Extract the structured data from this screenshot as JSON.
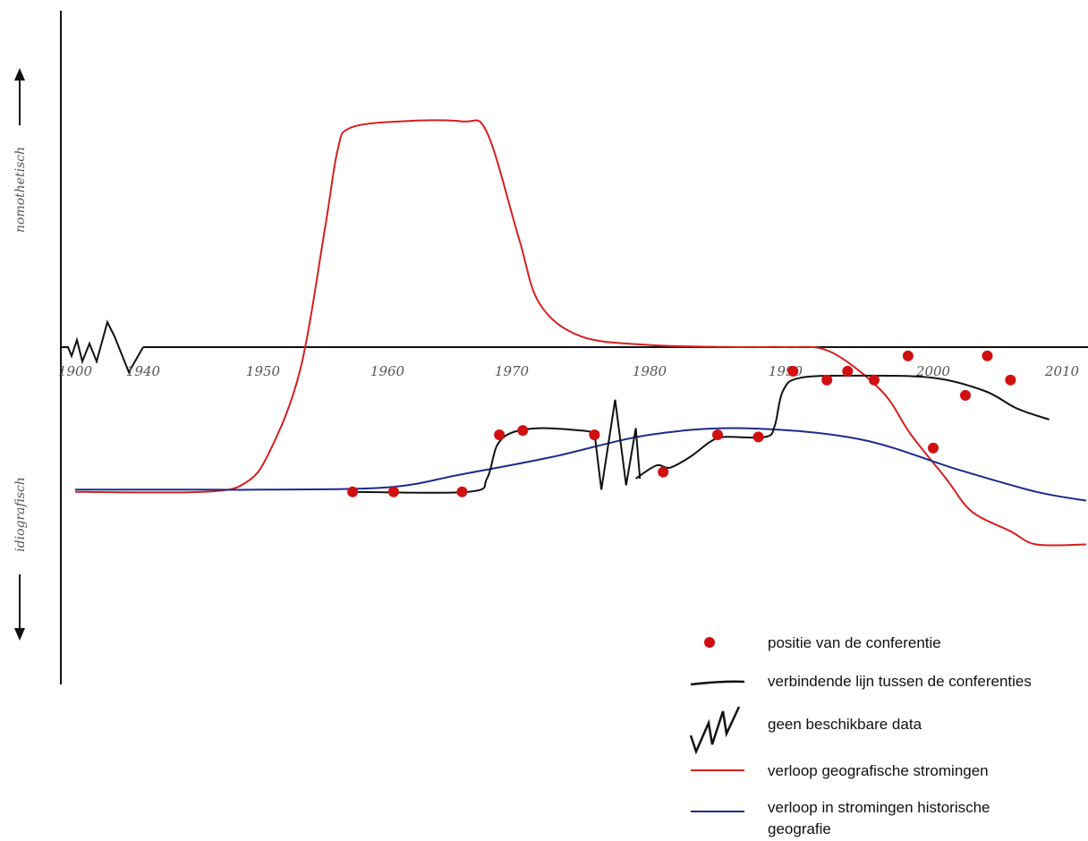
{
  "chart_data": {
    "type": "line",
    "y_axis": {
      "top_label": "nomothetisch",
      "bottom_label": "idiografisch"
    },
    "x_ticks": [
      {
        "label": "1900",
        "year": 1900
      },
      {
        "label": "1940",
        "year": 1940
      },
      {
        "label": "1950",
        "year": 1950
      },
      {
        "label": "1960",
        "year": 1960
      },
      {
        "label": "1970",
        "year": 1970
      },
      {
        "label": "1980",
        "year": 1980
      },
      {
        "label": "1990",
        "year": 1990
      },
      {
        "label": "2000",
        "year": 2000
      },
      {
        "label": "2010",
        "year": 2010
      }
    ],
    "series": [
      {
        "key": "geo",
        "name": "verloop geografische stromingen",
        "color": "#d42020",
        "points": [
          [
            1900,
            -0.66
          ],
          [
            1945,
            -0.66
          ],
          [
            1948.5,
            -0.62
          ],
          [
            1950.5,
            -0.48
          ],
          [
            1953,
            -0.1
          ],
          [
            1955,
            0.55
          ],
          [
            1956,
            0.9
          ],
          [
            1957,
            1.0
          ],
          [
            1961,
            1.03
          ],
          [
            1966,
            1.03
          ],
          [
            1968,
            0.98
          ],
          [
            1970.5,
            0.5
          ],
          [
            1972,
            0.2
          ],
          [
            1975,
            0.05
          ],
          [
            1980,
            0.01
          ],
          [
            1987,
            0.0
          ],
          [
            1990,
            0.0
          ],
          [
            1993,
            -0.02
          ],
          [
            1996.5,
            -0.2
          ],
          [
            1998.5,
            -0.4
          ],
          [
            2001,
            -0.6
          ],
          [
            2003,
            -0.75
          ],
          [
            2006,
            -0.84
          ],
          [
            2008,
            -0.9
          ],
          [
            2012,
            -0.9
          ]
        ]
      },
      {
        "key": "hist",
        "name": "verloop in stromingen historische geografie",
        "color": "#1c2a8c",
        "points": [
          [
            1900,
            -0.65
          ],
          [
            1945,
            -0.65
          ],
          [
            1950,
            -0.65
          ],
          [
            1960,
            -0.64
          ],
          [
            1966,
            -0.58
          ],
          [
            1973,
            -0.5
          ],
          [
            1980,
            -0.4
          ],
          [
            1987,
            -0.37
          ],
          [
            1995,
            -0.42
          ],
          [
            2002,
            -0.56
          ],
          [
            2008,
            -0.66
          ],
          [
            2012,
            -0.7
          ]
        ]
      }
    ],
    "conferences": {
      "name": "positie van de conferentie",
      "color": "#d01010",
      "points": [
        [
          1957.2,
          -0.66
        ],
        [
          1960.5,
          -0.66
        ],
        [
          1966,
          -0.66
        ],
        [
          1969,
          -0.4
        ],
        [
          1970.8,
          -0.38
        ],
        [
          1976,
          -0.4
        ],
        [
          1981,
          -0.57
        ],
        [
          1985,
          -0.4
        ],
        [
          1988,
          -0.41
        ],
        [
          1990.5,
          -0.11
        ],
        [
          1992.8,
          -0.15
        ],
        [
          1994.2,
          -0.11
        ],
        [
          1996,
          -0.15
        ],
        [
          1998.3,
          -0.04
        ],
        [
          2000,
          -0.46
        ],
        [
          2002.5,
          -0.22
        ],
        [
          2004.2,
          -0.04
        ],
        [
          2006,
          -0.15
        ]
      ]
    },
    "connecting_line": {
      "name": "verbindende lijn tussen de conferenties",
      "color": "#111111",
      "segments": [
        [
          [
            1957,
            -0.66
          ],
          [
            1966.5,
            -0.66
          ],
          [
            1968,
            -0.6
          ],
          [
            1968.8,
            -0.45
          ],
          [
            1970,
            -0.39
          ],
          [
            1972,
            -0.37
          ],
          [
            1975,
            -0.38
          ],
          [
            1976,
            -0.39
          ]
        ],
        [
          [
            1979,
            -0.6
          ],
          [
            1980.5,
            -0.54
          ],
          [
            1981.5,
            -0.55
          ],
          [
            1983,
            -0.5
          ],
          [
            1984.5,
            -0.43
          ],
          [
            1985.5,
            -0.41
          ],
          [
            1988.5,
            -0.41
          ],
          [
            1989.2,
            -0.36
          ],
          [
            1989.8,
            -0.2
          ],
          [
            1991,
            -0.14
          ],
          [
            1995,
            -0.13
          ],
          [
            2000,
            -0.14
          ],
          [
            2004,
            -0.2
          ],
          [
            2006.5,
            -0.28
          ],
          [
            2009,
            -0.33
          ]
        ]
      ]
    },
    "no_data": {
      "name": "geen beschikbare data",
      "color": "#111111"
    },
    "axis_range": {
      "x": [
        1900,
        2012
      ],
      "y": [
        -1.35,
        1.68
      ]
    },
    "grid": false,
    "legend_position": "bottom-right"
  }
}
